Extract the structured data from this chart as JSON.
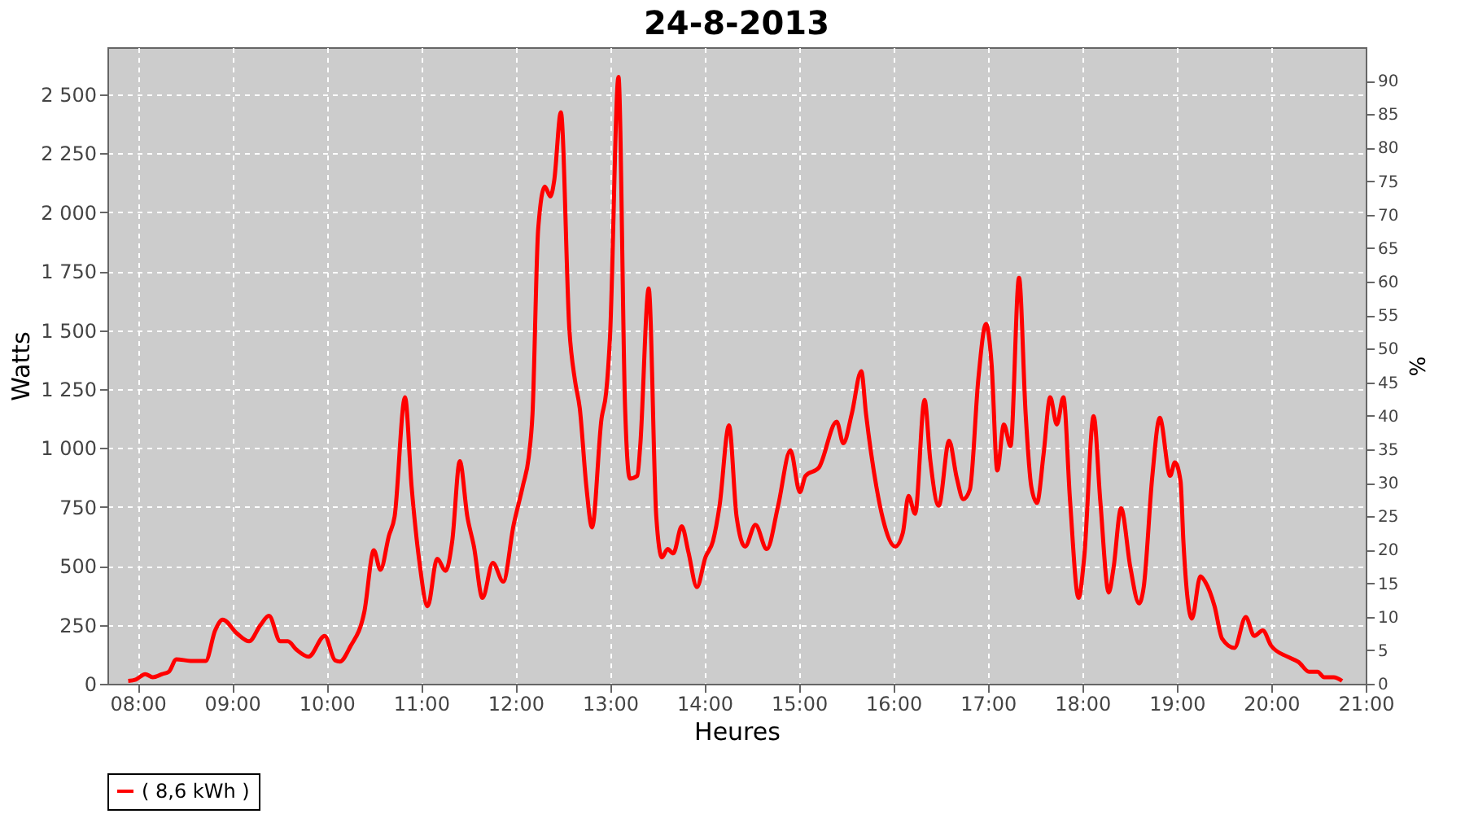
{
  "chart_data": {
    "type": "line",
    "title": "24-8-2013",
    "xlabel": "Heures",
    "ylabel": "Watts",
    "y2label": "%",
    "xlim": [
      7.68,
      21.0
    ],
    "xticks": [
      {
        "value": 8,
        "label": "08:00"
      },
      {
        "value": 9,
        "label": "09:00"
      },
      {
        "value": 10,
        "label": "10:00"
      },
      {
        "value": 11,
        "label": "11:00"
      },
      {
        "value": 12,
        "label": "12:00"
      },
      {
        "value": 13,
        "label": "13:00"
      },
      {
        "value": 14,
        "label": "14:00"
      },
      {
        "value": 15,
        "label": "15:00"
      },
      {
        "value": 16,
        "label": "16:00"
      },
      {
        "value": 17,
        "label": "17:00"
      },
      {
        "value": 18,
        "label": "18:00"
      },
      {
        "value": 19,
        "label": "19:00"
      },
      {
        "value": 20,
        "label": "20:00"
      },
      {
        "value": 21,
        "label": "21:00"
      }
    ],
    "ylim": [
      0,
      2700
    ],
    "yticks": [
      0,
      250,
      500,
      750,
      {
        "value": 1000,
        "label": "1 000"
      },
      {
        "value": 1250,
        "label": "1 250"
      },
      {
        "value": 1500,
        "label": "1 500"
      },
      {
        "value": 1750,
        "label": "1 750"
      },
      {
        "value": 2000,
        "label": "2 000"
      },
      {
        "value": 2250,
        "label": "2 250"
      },
      {
        "value": 2500,
        "label": "2 500"
      }
    ],
    "y2lim": [
      0,
      95
    ],
    "y2ticks": [
      0,
      5,
      10,
      15,
      20,
      25,
      30,
      35,
      40,
      45,
      50,
      55,
      60,
      65,
      70,
      75,
      80,
      85,
      90
    ],
    "grid": true,
    "legend": "bottom",
    "marker": "none",
    "line_style": "solid",
    "series": [
      {
        "name": "( 8,6 kWh )",
        "color": "#ff0000",
        "x": [
          7.9,
          7.98,
          8.08,
          8.16,
          8.26,
          8.33,
          8.41,
          8.56,
          8.72,
          8.82,
          8.9,
          9.05,
          9.18,
          9.3,
          9.39,
          9.51,
          9.59,
          9.68,
          9.81,
          9.98,
          10.09,
          10.14,
          10.25,
          10.4,
          10.5,
          10.57,
          10.66,
          10.72,
          10.83,
          10.9,
          10.98,
          11.07,
          11.17,
          11.26,
          11.33,
          11.41,
          11.49,
          11.56,
          11.65,
          11.76,
          11.87,
          11.98,
          12.08,
          12.14,
          12.18,
          12.24,
          12.31,
          12.37,
          12.41,
          12.48,
          12.57,
          12.63,
          12.68,
          12.75,
          12.81,
          12.91,
          12.96,
          13.0,
          13.09,
          13.16,
          13.21,
          13.29,
          13.32,
          13.41,
          13.49,
          13.55,
          13.61,
          13.67,
          13.76,
          13.83,
          13.92,
          14.01,
          14.09,
          14.16,
          14.26,
          14.34,
          14.43,
          14.54,
          14.66,
          14.78,
          14.91,
          15.01,
          15.07,
          15.21,
          15.4,
          15.47,
          15.56,
          15.66,
          15.71,
          15.82,
          15.89,
          16.02,
          16.1,
          16.16,
          16.23,
          16.33,
          16.39,
          16.48,
          16.59,
          16.67,
          16.74,
          16.81,
          16.9,
          16.98,
          17.04,
          17.1,
          17.17,
          17.24,
          17.33,
          17.4,
          17.46,
          17.52,
          17.59,
          17.66,
          17.73,
          17.8,
          17.87,
          17.96,
          18.02,
          18.12,
          18.19,
          18.28,
          18.33,
          18.41,
          18.51,
          18.6,
          18.65,
          18.74,
          18.82,
          18.93,
          18.98,
          19.04,
          19.07,
          19.16,
          19.25,
          19.3,
          19.4,
          19.48,
          19.61,
          19.73,
          19.82,
          19.91,
          20.0,
          20.17,
          20.29,
          20.4,
          20.49,
          20.56,
          20.66,
          20.75
        ],
        "values": [
          12,
          18,
          41,
          28,
          41,
          51,
          104,
          97,
          97,
          226,
          272,
          214,
          180,
          249,
          288,
          180,
          180,
          145,
          115,
          203,
          99,
          94,
          157,
          306,
          566,
          483,
          628,
          709,
          1215,
          836,
          525,
          329,
          530,
          479,
          605,
          944,
          709,
          582,
          364,
          513,
          433,
          674,
          843,
          962,
          1146,
          1929,
          2109,
          2067,
          2136,
          2424,
          1503,
          1285,
          1169,
          836,
          663,
          1123,
          1238,
          1469,
          2574,
          1169,
          870,
          882,
          1008,
          1676,
          709,
          536,
          571,
          553,
          668,
          559,
          410,
          536,
          605,
          755,
          1096,
          709,
          582,
          674,
          571,
          755,
          990,
          813,
          882,
          916,
          1112,
          1020,
          1146,
          1326,
          1146,
          836,
          698,
          582,
          640,
          797,
          721,
          1204,
          951,
          755,
          1031,
          875,
          783,
          824,
          1296,
          1526,
          1354,
          905,
          1100,
          1008,
          1722,
          1146,
          836,
          767,
          974,
          1215,
          1100,
          1215,
          778,
          364,
          536,
          1135,
          778,
          387,
          490,
          744,
          490,
          341,
          410,
          875,
          1128,
          882,
          939,
          859,
          605,
          276,
          456,
          433,
          329,
          191,
          152,
          283,
          203,
          226,
          161,
          115,
          92,
          51,
          51,
          28,
          28,
          12
        ]
      }
    ]
  }
}
